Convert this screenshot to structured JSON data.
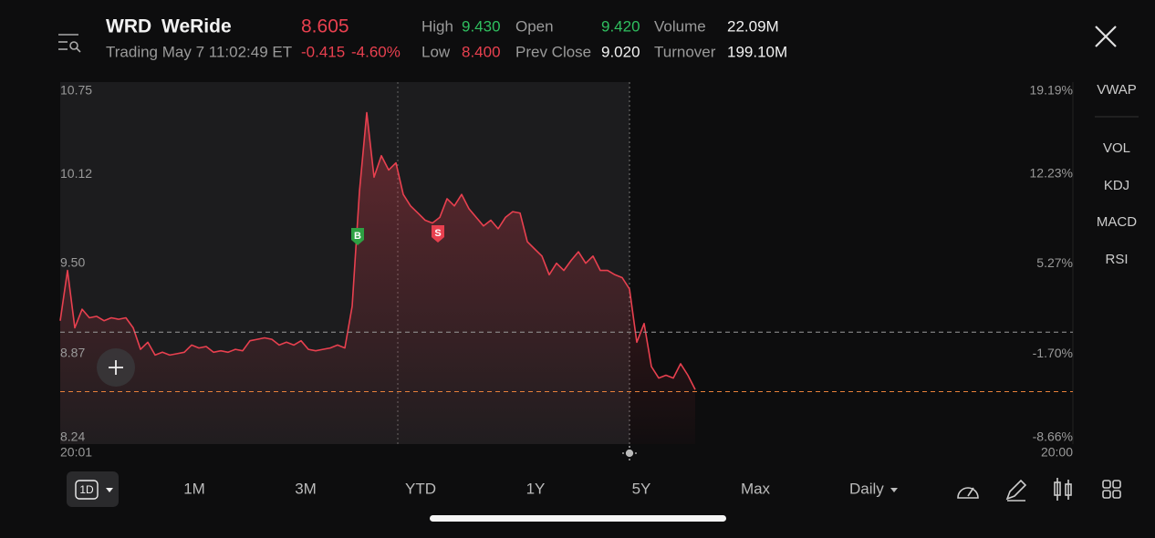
{
  "header": {
    "symbol": "WRD",
    "name": "WeRide",
    "price": "8.605",
    "status": "Trading May 7 11:02:49 ET",
    "change": "-0.415",
    "change_pct": "-4.60%"
  },
  "stats": [
    {
      "label": "High",
      "value": "9.430"
    },
    {
      "label": "Low",
      "value": "8.400"
    },
    {
      "label": "Open",
      "value": "9.420"
    },
    {
      "label": "Prev Close",
      "value": "9.020"
    },
    {
      "label": "Volume",
      "value": "22.09M"
    },
    {
      "label": "Turnover",
      "value": "199.10M"
    }
  ],
  "chart_data": {
    "type": "line",
    "color": "#e8404f",
    "values": [
      9.1,
      9.45,
      9.05,
      9.18,
      9.12,
      9.13,
      9.1,
      9.12,
      9.11,
      9.12,
      9.05,
      8.9,
      8.95,
      8.86,
      8.88,
      8.86,
      8.87,
      8.88,
      8.93,
      8.91,
      8.92,
      8.88,
      8.89,
      8.88,
      8.9,
      8.89,
      8.96,
      8.97,
      8.98,
      8.97,
      8.93,
      8.95,
      8.93,
      8.96,
      8.9,
      8.89,
      8.9,
      8.91,
      8.93,
      8.91,
      9.2,
      10.0,
      10.55,
      10.1,
      10.25,
      10.15,
      10.2,
      9.98,
      9.9,
      9.85,
      9.8,
      9.78,
      9.82,
      9.95,
      9.9,
      9.98,
      9.88,
      9.82,
      9.76,
      9.8,
      9.74,
      9.82,
      9.86,
      9.85,
      9.65,
      9.6,
      9.55,
      9.42,
      9.5,
      9.45,
      9.52,
      9.58,
      9.5,
      9.55,
      9.45,
      9.45,
      9.42,
      9.4,
      9.32,
      8.95,
      9.08,
      8.78,
      8.7,
      8.72,
      8.7,
      8.8,
      8.72,
      8.62
    ],
    "ylim": [
      8.24,
      10.75
    ],
    "yticks": [
      10.75,
      10.12,
      {
        "value": 9.5,
        "label": "9.50"
      },
      8.87,
      8.24
    ],
    "y2lim": [
      -8.66,
      19.19
    ],
    "y2ticks": [
      {
        "value": 19.19,
        "label": "19.19%"
      },
      {
        "value": 12.23,
        "label": "12.23%"
      },
      {
        "value": 5.27,
        "label": "5.27%"
      },
      {
        "value": -1.7,
        "label": "-1.70%"
      },
      {
        "value": -8.66,
        "label": "-8.66%"
      }
    ],
    "x_start": "20:01",
    "x_end": "20:00",
    "reference_lines": [
      {
        "value": 9.02,
        "color": "#9a9a9a"
      },
      {
        "value": 8.605,
        "color": "#e8803a"
      }
    ],
    "markers": [
      {
        "label": "B",
        "color": "#2ea043"
      },
      {
        "label": "S",
        "color": "#e8404f"
      }
    ]
  },
  "periods": [
    "1D",
    "1M",
    "3M",
    "YTD",
    "1Y",
    "5Y",
    "Max"
  ],
  "interval": "Daily",
  "indicators": [
    "VWAP",
    "VOL",
    "KDJ",
    "MACD",
    "RSI"
  ]
}
